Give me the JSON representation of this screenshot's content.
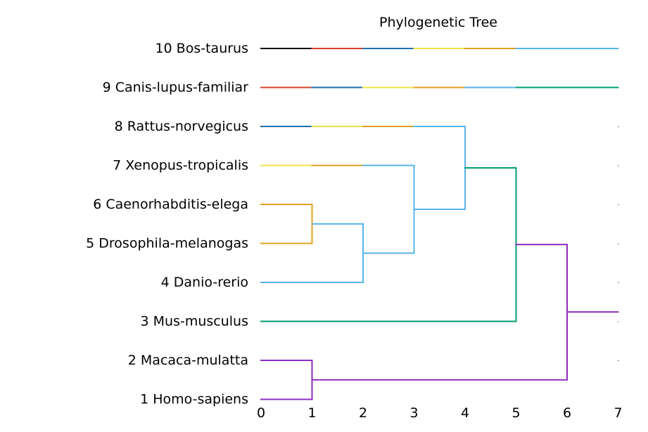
{
  "chart_data": {
    "type": "dendrogram",
    "title": "Phylogenetic Tree",
    "xlabel": "",
    "ylabel": "",
    "xlim": [
      0,
      7
    ],
    "xticks": [
      "0",
      "1",
      "2",
      "3",
      "4",
      "5",
      "6",
      "7"
    ],
    "grid": false,
    "leaves": [
      {
        "position": 1,
        "label": "1 Homo-sapiens"
      },
      {
        "position": 2,
        "label": "2 Macaca-mulatta"
      },
      {
        "position": 3,
        "label": "3 Mus-musculus"
      },
      {
        "position": 4,
        "label": "4 Danio-rerio"
      },
      {
        "position": 5,
        "label": "5 Drosophila-melanogas"
      },
      {
        "position": 6,
        "label": "6 Caenorhabditis-elega"
      },
      {
        "position": 7,
        "label": "7 Xenopus-tropicalis"
      },
      {
        "position": 8,
        "label": "8 Rattus-norvegicus"
      },
      {
        "position": 9,
        "label": "9 Canis-lupus-familiar"
      },
      {
        "position": 10,
        "label": "10 Bos-taurus"
      }
    ],
    "segments": [
      {
        "x": [
          0,
          1
        ],
        "y": [
          10,
          10
        ],
        "color": "#000000"
      },
      {
        "x": [
          1,
          2
        ],
        "y": [
          10,
          10
        ],
        "color": "#d43f2a"
      },
      {
        "x": [
          2,
          3
        ],
        "y": [
          10,
          10
        ],
        "color": "#1f6fb0"
      },
      {
        "x": [
          3,
          4
        ],
        "y": [
          10,
          10
        ],
        "color": "#ede34a"
      },
      {
        "x": [
          4,
          5
        ],
        "y": [
          10,
          10
        ],
        "color": "#e0a020"
      },
      {
        "x": [
          5,
          7
        ],
        "y": [
          10,
          10
        ],
        "color": "#56b4e9"
      },
      {
        "x": [
          0,
          1
        ],
        "y": [
          9,
          9
        ],
        "color": "#d43f2a"
      },
      {
        "x": [
          1,
          2
        ],
        "y": [
          9,
          9
        ],
        "color": "#1f6fb0"
      },
      {
        "x": [
          2,
          3
        ],
        "y": [
          9,
          9
        ],
        "color": "#ede34a"
      },
      {
        "x": [
          3,
          4
        ],
        "y": [
          9,
          9
        ],
        "color": "#e0a020"
      },
      {
        "x": [
          4,
          5
        ],
        "y": [
          9,
          9
        ],
        "color": "#56b4e9"
      },
      {
        "x": [
          5,
          7
        ],
        "y": [
          9,
          9
        ],
        "color": "#009e73"
      },
      {
        "x": [
          0,
          1
        ],
        "y": [
          8,
          8
        ],
        "color": "#1f6fb0"
      },
      {
        "x": [
          1,
          2
        ],
        "y": [
          8,
          8
        ],
        "color": "#ede34a"
      },
      {
        "x": [
          2,
          3
        ],
        "y": [
          8,
          8
        ],
        "color": "#e0a020"
      },
      {
        "x": [
          3,
          4
        ],
        "y": [
          8,
          8
        ],
        "color": "#56b4e9"
      },
      {
        "x": [
          0,
          1
        ],
        "y": [
          7,
          7
        ],
        "color": "#ede34a"
      },
      {
        "x": [
          1,
          2
        ],
        "y": [
          7,
          7
        ],
        "color": "#e0a020"
      },
      {
        "x": [
          2,
          3
        ],
        "y": [
          7,
          7
        ],
        "color": "#56b4e9"
      },
      {
        "x": [
          0,
          1
        ],
        "y": [
          6,
          6
        ],
        "color": "#e0a020"
      },
      {
        "x": [
          0,
          1
        ],
        "y": [
          5,
          5
        ],
        "color": "#e0a020"
      },
      {
        "x": [
          1,
          1
        ],
        "y": [
          5,
          6
        ],
        "color": "#e0a020"
      },
      {
        "x": [
          1,
          2
        ],
        "y": [
          5.5,
          5.5
        ],
        "color": "#56b4e9"
      },
      {
        "x": [
          0,
          2
        ],
        "y": [
          4,
          4
        ],
        "color": "#56b4e9"
      },
      {
        "x": [
          2,
          2
        ],
        "y": [
          4,
          5.5
        ],
        "color": "#56b4e9"
      },
      {
        "x": [
          2,
          3
        ],
        "y": [
          4.75,
          4.75
        ],
        "color": "#56b4e9"
      },
      {
        "x": [
          3,
          3
        ],
        "y": [
          4.75,
          7
        ],
        "color": "#56b4e9"
      },
      {
        "x": [
          3,
          4
        ],
        "y": [
          5.875,
          5.875
        ],
        "color": "#56b4e9"
      },
      {
        "x": [
          4,
          4
        ],
        "y": [
          5.875,
          8
        ],
        "color": "#56b4e9"
      },
      {
        "x": [
          4,
          5
        ],
        "y": [
          6.9375,
          6.9375
        ],
        "color": "#009e73"
      },
      {
        "x": [
          0,
          5
        ],
        "y": [
          3,
          3
        ],
        "color": "#009e73"
      },
      {
        "x": [
          5,
          5
        ],
        "y": [
          3,
          6.9375
        ],
        "color": "#009e73"
      },
      {
        "x": [
          5,
          6
        ],
        "y": [
          4.97,
          4.97
        ],
        "color": "#8e2bc0"
      },
      {
        "x": [
          0,
          1
        ],
        "y": [
          2,
          2
        ],
        "color": "#8e2bc0"
      },
      {
        "x": [
          0,
          1
        ],
        "y": [
          1,
          1
        ],
        "color": "#8e2bc0"
      },
      {
        "x": [
          1,
          1
        ],
        "y": [
          1,
          2
        ],
        "color": "#8e2bc0"
      },
      {
        "x": [
          1,
          6
        ],
        "y": [
          1.5,
          1.5
        ],
        "color": "#8e2bc0"
      },
      {
        "x": [
          6,
          6
        ],
        "y": [
          1.5,
          4.97
        ],
        "color": "#8e2bc0"
      },
      {
        "x": [
          6,
          7
        ],
        "y": [
          3.24,
          3.24
        ],
        "color": "#8e2bc0"
      }
    ]
  }
}
